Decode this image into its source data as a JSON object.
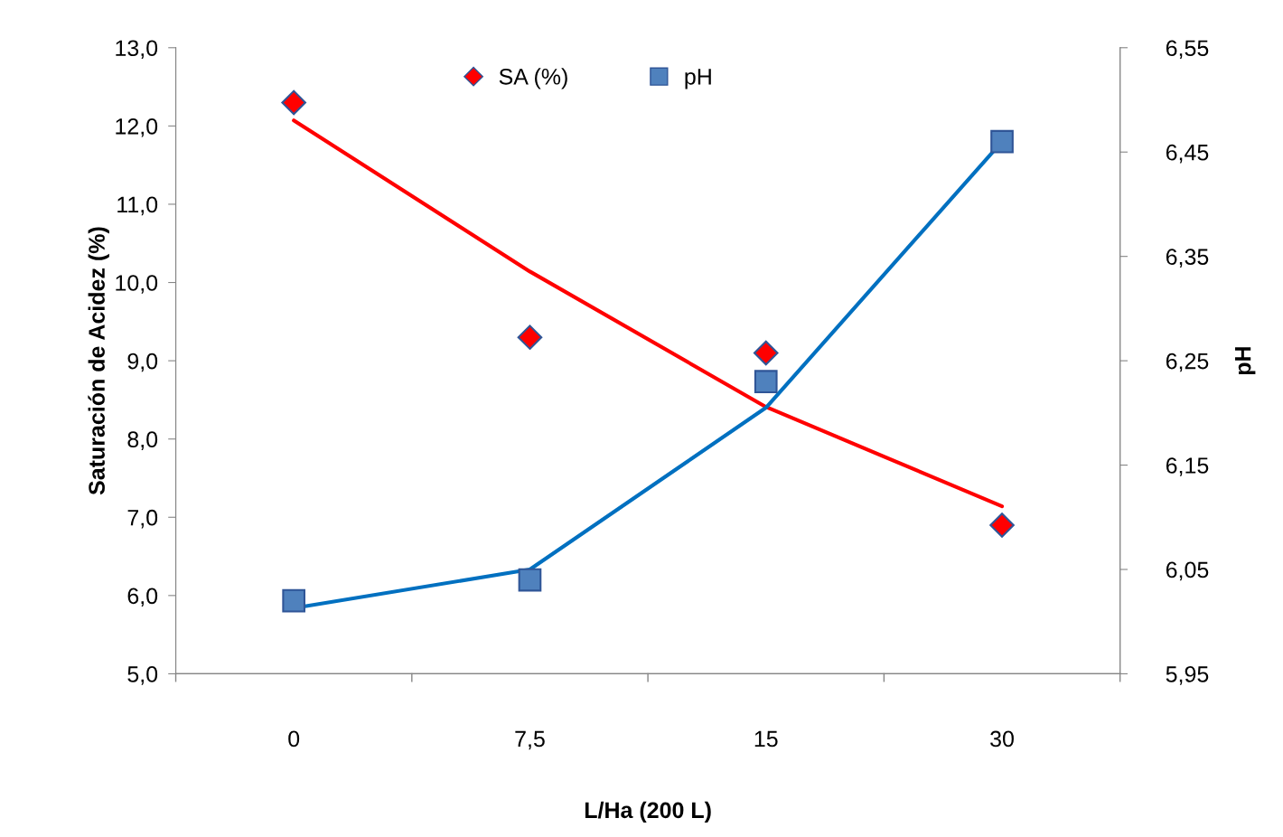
{
  "chart_data": {
    "type": "scatter",
    "xlabel": "L/Ha (200 L)",
    "ylabel": "Saturación de Acidez (%)",
    "y2label": "pH",
    "categories": [
      "0",
      "7,5",
      "15",
      "30"
    ],
    "ylim": [
      5.0,
      13.0
    ],
    "yticks": [
      {
        "value": 5.0,
        "label": "5,0"
      },
      {
        "value": 6.0,
        "label": "6,0"
      },
      {
        "value": 7.0,
        "label": "7,0"
      },
      {
        "value": 8.0,
        "label": "8,0"
      },
      {
        "value": 9.0,
        "label": "9,0"
      },
      {
        "value": 10.0,
        "label": "10,0"
      },
      {
        "value": 11.0,
        "label": "11,0"
      },
      {
        "value": 12.0,
        "label": "12,0"
      },
      {
        "value": 13.0,
        "label": "13,0"
      }
    ],
    "y2lim": [
      5.95,
      6.55
    ],
    "y2ticks": [
      {
        "value": 5.95,
        "label": "5,95"
      },
      {
        "value": 6.05,
        "label": "6,05"
      },
      {
        "value": 6.15,
        "label": "6,15"
      },
      {
        "value": 6.25,
        "label": "6,25"
      },
      {
        "value": 6.35,
        "label": "6,35"
      },
      {
        "value": 6.45,
        "label": "6,45"
      },
      {
        "value": 6.55,
        "label": "6,55"
      }
    ],
    "grid": false,
    "legend": "top",
    "series": [
      {
        "type": "line",
        "color": "#ff0000",
        "values": [
          12.07,
          10.14,
          8.41,
          7.14
        ],
        "marker": "none"
      },
      {
        "type": "line",
        "axis": "y2",
        "color": "#0070c0",
        "values": [
          6.013,
          6.05,
          6.205,
          6.46
        ],
        "marker": "none"
      },
      {
        "name": "SA (%)",
        "color": "#ff0000",
        "values": [
          12.3,
          9.3,
          9.1,
          6.9
        ],
        "marker": "diamond"
      },
      {
        "name": "pH",
        "axis": "y2",
        "color": "#4f81bd",
        "values": [
          6.02,
          6.04,
          6.23,
          6.46
        ],
        "marker": "square"
      }
    ]
  }
}
